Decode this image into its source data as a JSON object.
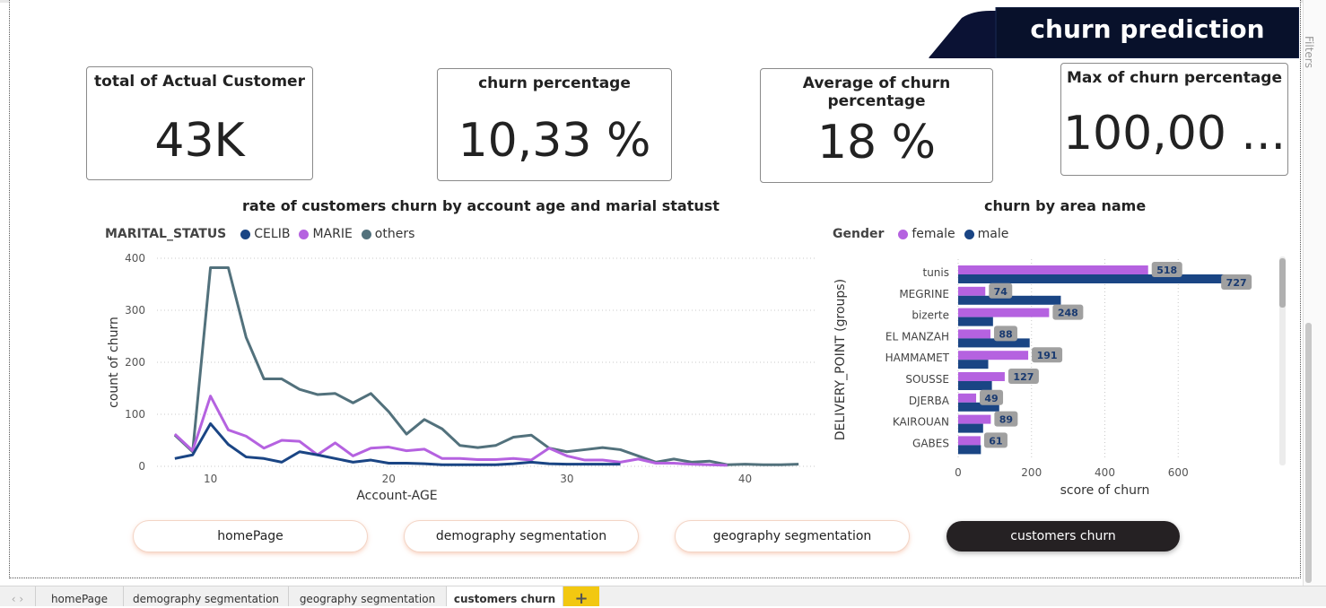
{
  "report_title": "churn prediction",
  "kpis": [
    {
      "label": "total of Actual Customer",
      "value": "43K"
    },
    {
      "label": "churn percentage",
      "value": "10,33 %"
    },
    {
      "label": "Average of churn percentage",
      "value": "18 %"
    },
    {
      "label": "Max of churn percentage",
      "value": "100,00 ..."
    }
  ],
  "line_chart": {
    "title": "rate of customers churn by account age and marial statust",
    "legend_title": "MARITAL_STATUS",
    "legend": [
      "CELIB",
      "MARIE",
      "others"
    ],
    "xlabel": "Account-AGE",
    "ylabel": "count of churn"
  },
  "bar_chart": {
    "title": "churn by area name",
    "legend_title": "Gender",
    "legend": [
      "female",
      "male"
    ],
    "xlabel": "score of churn",
    "ylabel": "DELIVERY_POINT (groups)"
  },
  "chart_data": [
    {
      "type": "line",
      "title": "rate of customers churn by account age and marial statust",
      "xlabel": "Account-AGE",
      "ylabel": "count of churn",
      "xlim": [
        7,
        44
      ],
      "ylim": [
        0,
        400
      ],
      "xticks": [
        10,
        20,
        30,
        40
      ],
      "yticks": [
        0,
        100,
        200,
        300,
        400
      ],
      "grid": true,
      "legend_placement": "top-left",
      "series": [
        {
          "name": "CELIB",
          "color": "#1a4584",
          "x": [
            8,
            9,
            10,
            11,
            12,
            13,
            14,
            15,
            16,
            17,
            18,
            19,
            20,
            21,
            22,
            23,
            24,
            25,
            26,
            27,
            28,
            29,
            30,
            31,
            32,
            33
          ],
          "y": [
            15,
            22,
            82,
            42,
            18,
            15,
            8,
            28,
            22,
            15,
            8,
            12,
            6,
            6,
            5,
            3,
            3,
            3,
            3,
            5,
            8,
            5,
            4,
            4,
            4,
            4
          ]
        },
        {
          "name": "MARIE",
          "color": "#b562e0",
          "x": [
            8,
            9,
            10,
            11,
            12,
            13,
            14,
            15,
            16,
            17,
            18,
            19,
            20,
            21,
            22,
            23,
            24,
            25,
            26,
            27,
            28,
            29,
            30,
            31,
            32,
            33,
            34,
            35,
            36,
            37,
            38,
            39
          ],
          "y": [
            62,
            30,
            135,
            70,
            58,
            35,
            50,
            48,
            22,
            45,
            20,
            35,
            37,
            30,
            33,
            15,
            15,
            13,
            13,
            15,
            12,
            35,
            20,
            12,
            12,
            8,
            14,
            6,
            6,
            4,
            3,
            2
          ]
        },
        {
          "name": "others",
          "color": "#52717c",
          "x": [
            8,
            9,
            10,
            11,
            12,
            13,
            14,
            15,
            16,
            17,
            18,
            19,
            20,
            21,
            22,
            23,
            24,
            25,
            26,
            27,
            28,
            29,
            30,
            31,
            32,
            33,
            34,
            35,
            36,
            37,
            38,
            39,
            40,
            41,
            42,
            43
          ],
          "y": [
            60,
            28,
            382,
            382,
            248,
            168,
            168,
            148,
            138,
            140,
            122,
            140,
            105,
            62,
            90,
            72,
            40,
            36,
            40,
            56,
            60,
            35,
            28,
            32,
            36,
            32,
            20,
            8,
            14,
            8,
            10,
            3,
            4,
            3,
            3,
            4
          ]
        }
      ]
    },
    {
      "type": "bar",
      "orientation": "horizontal",
      "title": "churn by area name",
      "xlabel": "score of churn",
      "ylabel": "DELIVERY_POINT (groups)",
      "xlim": [
        0,
        800
      ],
      "xticks": [
        0,
        200,
        400,
        600
      ],
      "legend_placement": "top-left",
      "categories": [
        "tunis",
        "MEGRINE",
        "bizerte",
        "EL MANZAH",
        "HAMMAMET",
        "SOUSSE",
        "DJERBA",
        "KAIROUAN",
        "GABES"
      ],
      "series": [
        {
          "name": "female",
          "color": "#b562e0",
          "values": [
            518,
            74,
            248,
            88,
            191,
            127,
            49,
            89,
            61
          ]
        },
        {
          "name": "male",
          "color": "#1a4584",
          "values": [
            727,
            280,
            95,
            195,
            82,
            92,
            112,
            68,
            62
          ]
        }
      ],
      "data_labels": {
        "female": [
          518,
          74,
          248,
          88,
          191,
          127,
          49,
          89,
          61
        ],
        "male": [
          727
        ]
      }
    }
  ],
  "nav_buttons": [
    "homePage",
    "demography segmentation",
    "geography segmentation",
    "customers churn"
  ],
  "tabs": [
    "homePage",
    "demography segmentation",
    "geography segmentation",
    "customers churn"
  ],
  "add_tab": "+",
  "filters_label": "Filters"
}
